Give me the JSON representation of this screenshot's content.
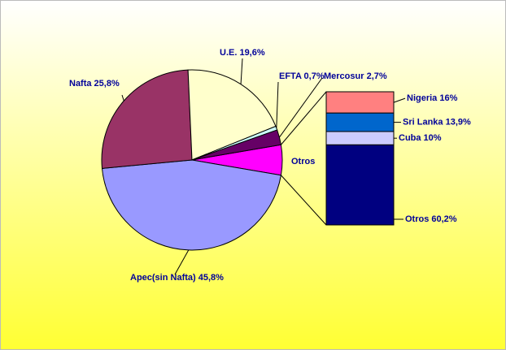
{
  "chart_data": {
    "type": "pie-of-bar",
    "pie": {
      "values": [
        5.4,
        45.8,
        25.8,
        19.6,
        0.7,
        2.7
      ],
      "value_labels": [
        "Otros",
        "Apec(sin Nafta) 45,8%",
        "Nafta 25,8%",
        "U.E. 19,6%",
        "EFTA 0,7%",
        "Mercosur 2,7%"
      ],
      "colors": [
        "#ff00ff",
        "#9999ff",
        "#993366",
        "#ffffcc",
        "#ccffff",
        "#660066"
      ]
    },
    "bar": {
      "values": [
        16,
        13.9,
        10,
        60.2
      ],
      "value_labels": [
        "Nigeria 16%",
        "Sri Lanka 13,9%",
        "Cuba 10%",
        "Otros 60,2%"
      ],
      "colors": [
        "#ff8080",
        "#0066cc",
        "#ccccff",
        "#000080"
      ]
    }
  }
}
